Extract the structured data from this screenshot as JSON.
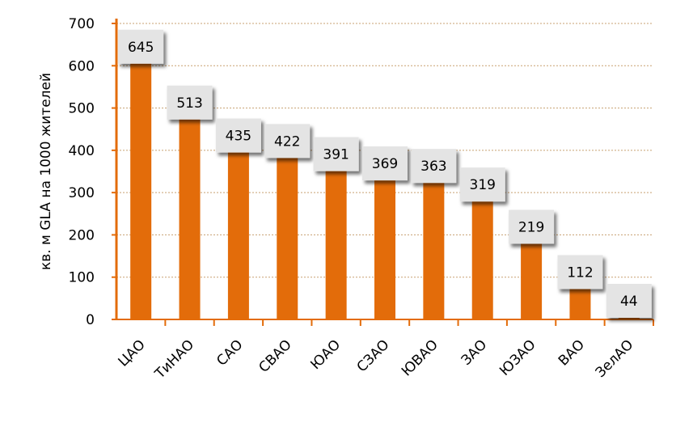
{
  "chart_data": {
    "type": "bar",
    "categories": [
      "ЦАО",
      "ТиНАО",
      "САО",
      "СВАО",
      "ЮАО",
      "СЗАО",
      "ЮВАО",
      "ЗАО",
      "ЮЗАО",
      "ВАО",
      "ЗелАО"
    ],
    "values": [
      645,
      513,
      435,
      422,
      391,
      369,
      363,
      319,
      219,
      112,
      44
    ],
    "ylabel": "кв. м GLA на 1000 жителей",
    "xlabel": "",
    "ylim": [
      0,
      700
    ],
    "yticks": [
      0,
      100,
      200,
      300,
      400,
      500,
      600,
      700
    ],
    "grid": true,
    "legend": "none",
    "colors": {
      "bar": "#E36C0A",
      "axis": "#E36C0A",
      "gridline": "#C8A070",
      "label_bg": "#E4E4E4"
    }
  }
}
